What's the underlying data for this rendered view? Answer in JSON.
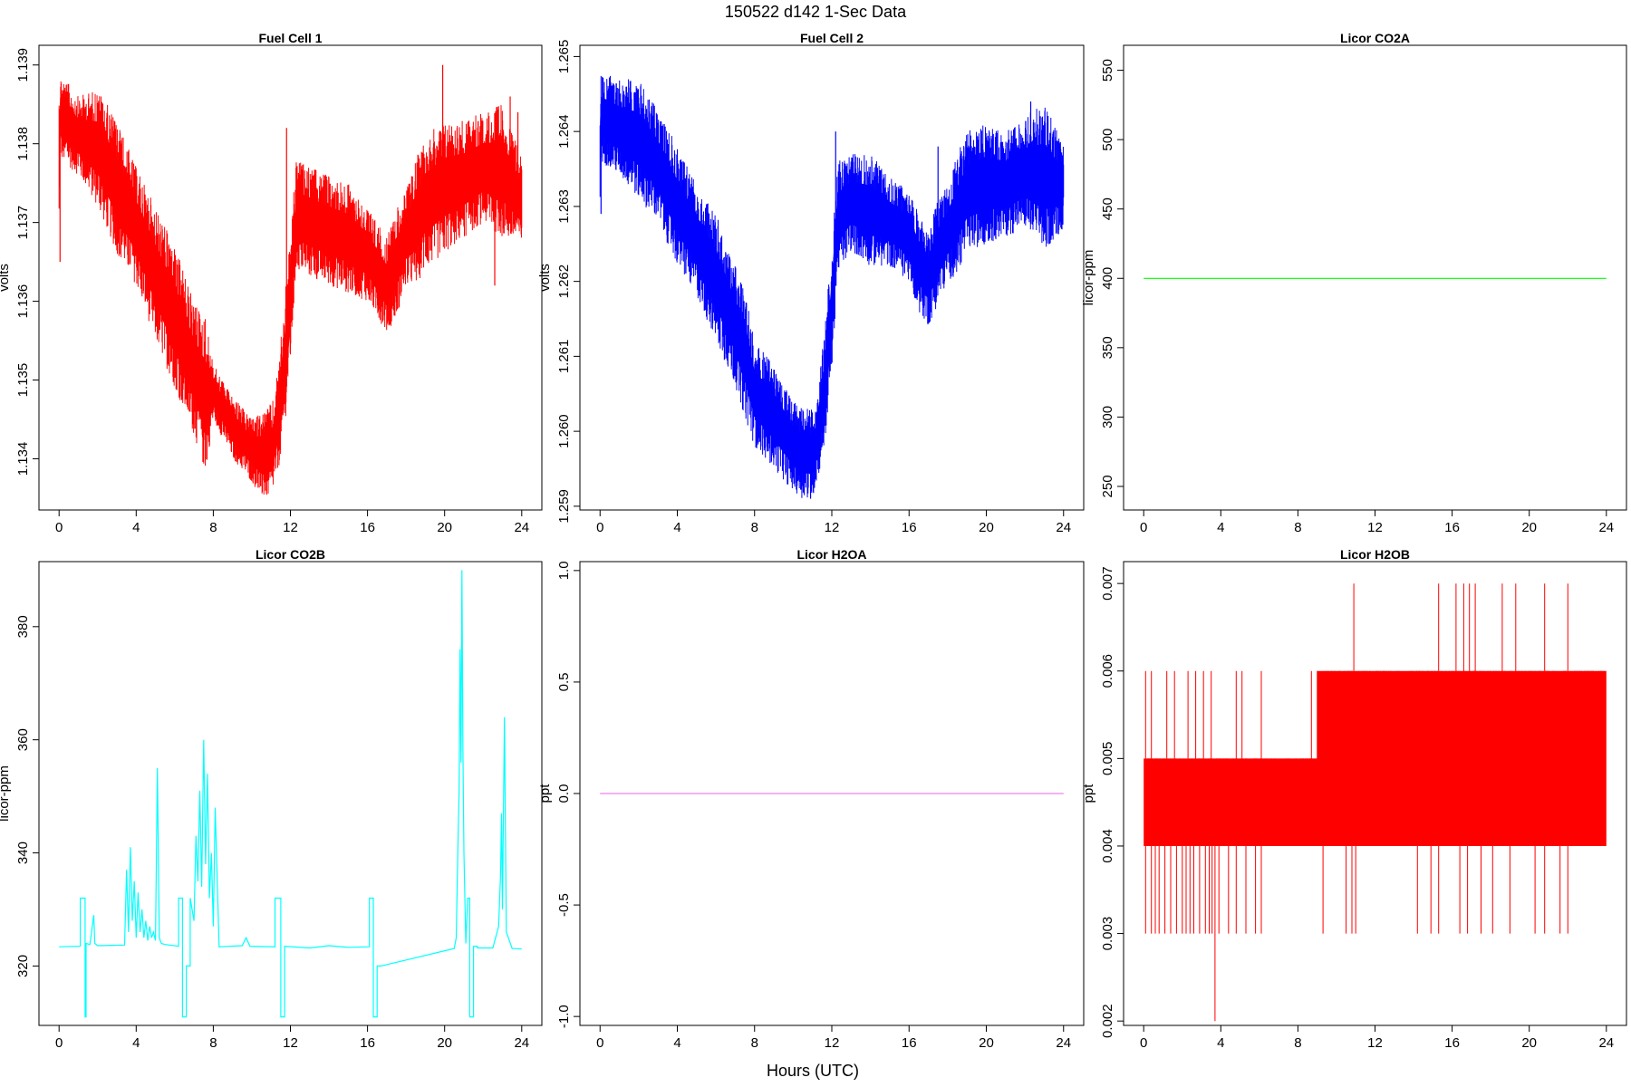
{
  "figure": {
    "title": "150522   d142   1-Sec Data",
    "xlabel": "Hours (UTC)"
  },
  "chart_data": [
    {
      "type": "line",
      "title": "Fuel Cell 1",
      "ylabel": "volts",
      "color": "#ff0000",
      "xlim": [
        0,
        24
      ],
      "ylim": [
        1.13335,
        1.13925
      ],
      "xticks": [
        0,
        4,
        8,
        12,
        16,
        20,
        24
      ],
      "yticks": [
        1.134,
        1.135,
        1.136,
        1.137,
        1.138,
        1.139
      ],
      "ytick_labels": [
        "1.134",
        "1.135",
        "1.136",
        "1.137",
        "1.138",
        "1.139"
      ],
      "style": "noisy-band",
      "series": [
        {
          "x": [
            0,
            0.05,
            1,
            2,
            3,
            4,
            5,
            6,
            7,
            7.6,
            8,
            9,
            10,
            10.5,
            11,
            11.2,
            11.6,
            12,
            12.3,
            13,
            14,
            15,
            16,
            16.5,
            17,
            17.5,
            18,
            18.5,
            19,
            20,
            21,
            22,
            23,
            24
          ],
          "low": [
            1.1365,
            1.1378,
            1.1376,
            1.1372,
            1.1366,
            1.1362,
            1.1355,
            1.1349,
            1.1343,
            1.1338,
            1.1345,
            1.134,
            1.1337,
            1.1335,
            1.1335,
            1.1337,
            1.1341,
            1.1352,
            1.1364,
            1.1363,
            1.1362,
            1.1361,
            1.136,
            1.1358,
            1.1356,
            1.1358,
            1.1362,
            1.1362,
            1.1364,
            1.1366,
            1.1368,
            1.137,
            1.1368,
            1.1367
          ],
          "high": [
            1.1388,
            1.1389,
            1.1386,
            1.1387,
            1.1383,
            1.1377,
            1.1372,
            1.1367,
            1.136,
            1.1358,
            1.1352,
            1.1348,
            1.1345,
            1.1346,
            1.1347,
            1.1348,
            1.1358,
            1.1368,
            1.1378,
            1.1377,
            1.1376,
            1.1375,
            1.1372,
            1.137,
            1.1368,
            1.1372,
            1.1374,
            1.1378,
            1.1381,
            1.1383,
            1.1383,
            1.1384,
            1.1385,
            1.1378
          ],
          "spikes": [
            [
              0.05,
              1.1365
            ],
            [
              11.8,
              1.1382
            ],
            [
              19.9,
              1.139
            ],
            [
              22.6,
              1.1362
            ],
            [
              23.4,
              1.1386
            ],
            [
              23.8,
              1.1384
            ]
          ]
        }
      ]
    },
    {
      "type": "line",
      "title": "Fuel Cell 2",
      "ylabel": "volts",
      "color": "#0000ff",
      "xlim": [
        0,
        24
      ],
      "ylim": [
        1.25895,
        1.26515
      ],
      "xticks": [
        0,
        4,
        8,
        12,
        16,
        20,
        24
      ],
      "yticks": [
        1.259,
        1.26,
        1.261,
        1.262,
        1.263,
        1.264,
        1.265
      ],
      "ytick_labels": [
        "1.259",
        "1.260",
        "1.261",
        "1.262",
        "1.263",
        "1.264",
        "1.265"
      ],
      "style": "noisy-band",
      "series": [
        {
          "x": [
            0,
            0.05,
            1,
            2,
            3,
            4,
            5,
            6,
            7,
            7.6,
            8,
            9,
            10,
            10.5,
            11,
            11.2,
            11.6,
            12,
            12.3,
            13,
            14,
            15,
            16,
            16.5,
            17,
            17.5,
            18,
            18.5,
            19,
            20,
            21,
            22,
            23,
            24
          ],
          "low": [
            1.2629,
            1.2636,
            1.2634,
            1.2631,
            1.2628,
            1.2622,
            1.2618,
            1.2612,
            1.2606,
            1.2601,
            1.2598,
            1.2595,
            1.2592,
            1.2591,
            1.2591,
            1.2593,
            1.2597,
            1.2608,
            1.2621,
            1.2624,
            1.2622,
            1.2622,
            1.262,
            1.2616,
            1.2614,
            1.2617,
            1.262,
            1.2621,
            1.2624,
            1.2625,
            1.2626,
            1.2627,
            1.2624,
            1.2627
          ],
          "high": [
            1.2646,
            1.2648,
            1.2647,
            1.2647,
            1.2643,
            1.2638,
            1.2633,
            1.2629,
            1.2622,
            1.2618,
            1.2612,
            1.2609,
            1.2604,
            1.2603,
            1.2603,
            1.2604,
            1.2613,
            1.2625,
            1.2636,
            1.2637,
            1.2637,
            1.2634,
            1.2632,
            1.2629,
            1.2627,
            1.2631,
            1.2633,
            1.2637,
            1.264,
            1.2641,
            1.264,
            1.2642,
            1.2644,
            1.2638
          ],
          "spikes": [
            [
              0.05,
              1.2629
            ],
            [
              10.9,
              1.2591
            ],
            [
              12.2,
              1.264
            ],
            [
              17.5,
              1.2638
            ],
            [
              22.3,
              1.2644
            ]
          ]
        }
      ]
    },
    {
      "type": "line",
      "title": "Licor CO2A",
      "ylabel": "licor-ppm",
      "color": "#00ff00",
      "xlim": [
        0,
        24
      ],
      "ylim": [
        233,
        568
      ],
      "xticks": [
        0,
        4,
        8,
        12,
        16,
        20,
        24
      ],
      "yticks": [
        250,
        300,
        350,
        400,
        450,
        500,
        550
      ],
      "ytick_labels": [
        "250",
        "300",
        "350",
        "400",
        "450",
        "500",
        "550"
      ],
      "style": "line",
      "series": [
        {
          "x": [
            0,
            24
          ],
          "y": [
            400,
            400
          ]
        }
      ]
    },
    {
      "type": "line",
      "title": "Licor CO2B",
      "ylabel": "licor-ppm",
      "color": "#00ffff",
      "xlim": [
        0,
        24
      ],
      "ylim": [
        309.5,
        391.5
      ],
      "xticks": [
        0,
        4,
        8,
        12,
        16,
        20,
        24
      ],
      "yticks": [
        320,
        340,
        360,
        380
      ],
      "ytick_labels": [
        "320",
        "340",
        "360",
        "380"
      ],
      "style": "line",
      "series": [
        {
          "x": [
            0,
            1.1,
            1.1,
            1.35,
            1.35,
            1.4,
            1.4,
            1.6,
            1.8,
            1.85,
            2,
            3.4,
            3.5,
            3.6,
            3.7,
            3.8,
            3.9,
            4,
            4.1,
            4.2,
            4.3,
            4.4,
            4.5,
            4.6,
            4.7,
            4.8,
            4.9,
            5.0,
            5.1,
            5.2,
            5.3,
            5.5,
            6.2,
            6.2,
            6.4,
            6.4,
            6.6,
            6.6,
            6.8,
            6.8,
            7.0,
            7.1,
            7.2,
            7.3,
            7.4,
            7.5,
            7.6,
            7.7,
            7.8,
            7.9,
            8.0,
            8.1,
            8.3,
            9.5,
            9.7,
            9.9,
            11.2,
            11.2,
            11.5,
            11.5,
            11.7,
            11.7,
            13,
            14,
            15,
            16.1,
            16.1,
            16.3,
            16.3,
            16.5,
            16.5,
            16.7,
            20.5,
            20.6,
            20.7,
            20.75,
            20.8,
            20.85,
            20.9,
            20.95,
            21.0,
            21.1,
            21.2,
            21.3,
            21.3,
            21.5,
            21.5,
            21.7,
            21.7,
            22.5,
            22.8,
            22.9,
            22.95,
            23.0,
            23.1,
            23.2,
            23.5,
            24
          ],
          "y": [
            323.4,
            323.5,
            332,
            332,
            311,
            311,
            324,
            323.8,
            329,
            324,
            323.6,
            323.7,
            337,
            326,
            341,
            328,
            335,
            325,
            333,
            326,
            330,
            325,
            328,
            324.5,
            327,
            325,
            326,
            324.5,
            355,
            325,
            324,
            323.8,
            323.5,
            332,
            332,
            311,
            311,
            320,
            320,
            332,
            328,
            343,
            335,
            351,
            334,
            360,
            338,
            354,
            332,
            340,
            327,
            348,
            323.4,
            323.6,
            325,
            323.5,
            323.4,
            332,
            332,
            311,
            311,
            323.5,
            323.2,
            323.6,
            323.3,
            323.4,
            332,
            332,
            311,
            311,
            320,
            320,
            323.1,
            325,
            343,
            351,
            376,
            356,
            390,
            358,
            340,
            324,
            332,
            332,
            311,
            311,
            323.5,
            323.5,
            323.2,
            323.2,
            327,
            336,
            347,
            330,
            364,
            326,
            323.1,
            323.0
          ]
        }
      ]
    },
    {
      "type": "line",
      "title": "Licor H2OA",
      "ylabel": "ppt",
      "color": "#ee82ee",
      "xlim": [
        0,
        24
      ],
      "ylim": [
        -1.04,
        1.04
      ],
      "xticks": [
        0,
        4,
        8,
        12,
        16,
        20,
        24
      ],
      "yticks": [
        -1.0,
        -0.5,
        0.0,
        0.5,
        1.0
      ],
      "ytick_labels": [
        "-1.0",
        "-0.5",
        "0.0",
        "0.5",
        "1.0"
      ],
      "style": "line",
      "series": [
        {
          "x": [
            0,
            24
          ],
          "y": [
            0,
            0
          ]
        }
      ]
    },
    {
      "type": "line",
      "title": "Licor H2OB",
      "ylabel": "ppt",
      "color": "#ff0000",
      "xlim": [
        0,
        24
      ],
      "ylim": [
        0.00195,
        0.00725
      ],
      "xticks": [
        0,
        4,
        8,
        12,
        16,
        20,
        24
      ],
      "yticks": [
        0.002,
        0.003,
        0.004,
        0.005,
        0.006,
        0.007
      ],
      "ytick_labels": [
        "0.002",
        "0.003",
        "0.004",
        "0.005",
        "0.006",
        "0.007"
      ],
      "style": "band",
      "series": [
        {
          "segments": [
            [
              0,
              9,
              0.004,
              0.005
            ],
            [
              9,
              24,
              0.004,
              0.006
            ]
          ],
          "down_spikes_x": [
            0.1,
            0.4,
            0.6,
            0.8,
            1.1,
            1.4,
            1.7,
            2.0,
            2.2,
            2.4,
            2.6,
            2.9,
            3.2,
            3.4,
            3.55,
            3.7,
            3.9,
            4.4,
            4.8,
            5.3,
            5.8,
            6.1,
            9.3,
            10.5,
            10.8,
            11.0,
            14.2,
            14.9,
            15.3,
            16.4,
            16.8,
            17.5,
            18.1,
            19.0,
            20.3,
            20.8,
            21.6,
            22.0
          ],
          "down_spike_y": 0.003,
          "deep_spike": [
            3.7,
            0.002
          ],
          "up_spikes_x": [
            0.1,
            0.4,
            1.2,
            1.6,
            2.3,
            2.7,
            3.1,
            3.5,
            4.8,
            5.1,
            6.1,
            8.7,
            10.9,
            15.3,
            16.2,
            16.6,
            16.9,
            18.6,
            19.3,
            19.6,
            20.8,
            22.0
          ],
          "up_spike_y": 0.006,
          "top_spikes_x": [
            10.9,
            15.3,
            16.2,
            16.6,
            16.9,
            17.2,
            18.6,
            19.3,
            20.8,
            22.0
          ],
          "top_spike_y": 0.007
        }
      ]
    }
  ]
}
